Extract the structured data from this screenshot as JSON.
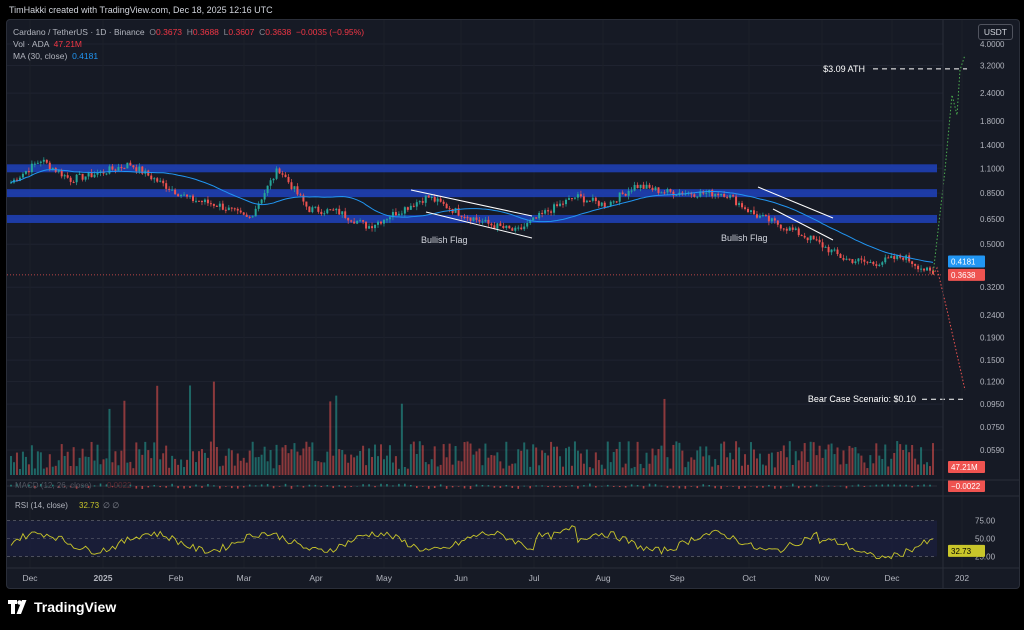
{
  "header": {
    "attribution": "TimHakki created with TradingView.com, Dec 18, 2025 12:16 UTC"
  },
  "legend": {
    "symbol": "Cardano / TetherUS · 1D · Binance",
    "open_label": "O",
    "open": "0.3673",
    "high_label": "H",
    "high": "0.3688",
    "low_label": "L",
    "low": "0.3607",
    "close_label": "C",
    "close": "0.3638",
    "change": "−0.0035 (−0.95%)",
    "vol_label": "Vol · ADA",
    "vol": "47.21M",
    "ma_label": "MA (30, close)",
    "ma": "0.4181"
  },
  "currency": "USDT",
  "footer": {
    "brand": "TradingView"
  },
  "colors": {
    "bg": "#161a25",
    "zone": "#1e3fb4",
    "up": "#26a69a",
    "down": "#ef5350",
    "ma": "#2196f3",
    "rsi": "#c9c62a"
  },
  "chart_data": {
    "type": "candlestick",
    "scale": "log",
    "x_ticks": [
      "Dec",
      "2025",
      "Feb",
      "Mar",
      "Apr",
      "May",
      "Jun",
      "Jul",
      "Aug",
      "Sep",
      "Oct",
      "Nov",
      "Dec",
      "202"
    ],
    "y_ticks": [
      "4.0000",
      "3.2000",
      "2.4000",
      "1.8000",
      "1.4000",
      "1.1000",
      "0.8500",
      "0.6500",
      "0.5000",
      "0.4181",
      "0.3638",
      "0.3200",
      "0.2400",
      "0.1900",
      "0.1500",
      "0.1200",
      "0.0950",
      "0.0750",
      "0.0590"
    ],
    "price_path": [
      {
        "t": "Dec",
        "p": 0.95
      },
      {
        "t": "Dec-mid",
        "p": 1.2
      },
      {
        "t": "Dec-end",
        "p": 0.98
      },
      {
        "t": "2025",
        "p": 1.05
      },
      {
        "t": "Jan-mid",
        "p": 1.15
      },
      {
        "t": "Jan-end",
        "p": 0.95
      },
      {
        "t": "Feb",
        "p": 0.8
      },
      {
        "t": "Feb-mid",
        "p": 0.75
      },
      {
        "t": "Feb-end",
        "p": 0.65
      },
      {
        "t": "Mar",
        "p": 1.1
      },
      {
        "t": "Mar-mid",
        "p": 0.72
      },
      {
        "t": "Apr",
        "p": 0.7
      },
      {
        "t": "Apr-mid",
        "p": 0.6
      },
      {
        "t": "May",
        "p": 0.7
      },
      {
        "t": "May-mid",
        "p": 0.82
      },
      {
        "t": "Jun",
        "p": 0.7
      },
      {
        "t": "Jun-mid",
        "p": 0.62
      },
      {
        "t": "Jul",
        "p": 0.57
      },
      {
        "t": "Jul-mid",
        "p": 0.7
      },
      {
        "t": "Aug",
        "p": 0.82
      },
      {
        "t": "Aug-mid",
        "p": 0.75
      },
      {
        "t": "Aug-end",
        "p": 0.92
      },
      {
        "t": "Sep",
        "p": 0.86
      },
      {
        "t": "Sep-mid",
        "p": 0.85
      },
      {
        "t": "Oct",
        "p": 0.85
      },
      {
        "t": "Oct-mid",
        "p": 0.68
      },
      {
        "t": "Oct-end",
        "p": 0.6
      },
      {
        "t": "Nov",
        "p": 0.52
      },
      {
        "t": "Nov-mid",
        "p": 0.43
      },
      {
        "t": "Dec",
        "p": 0.41
      },
      {
        "t": "Dec-mid",
        "p": 0.44
      },
      {
        "t": "Dec-18",
        "p": 0.3638
      }
    ],
    "resistance_zones": [
      1.1,
      0.85,
      0.65
    ],
    "annotations": [
      {
        "text": "Bullish Flag"
      },
      {
        "text": "Bullish Flag"
      },
      {
        "text": "$3.09 ATH",
        "value": 3.09
      },
      {
        "text": "Bear Case Scenario: $0.10",
        "value": 0.1
      }
    ],
    "price_labels": {
      "ma": "0.4181",
      "last": "0.3638",
      "volume": "47.21M",
      "macd": "−0.0022",
      "rsi": "32.73"
    },
    "indicators": {
      "macd": {
        "label": "MACD (12, 26, close)",
        "value": "−0.0022",
        "faded_value": "0.0022"
      },
      "rsi": {
        "label": "RSI (14, close)",
        "value": "32.73",
        "extra": "∅ ∅",
        "levels": [
          "75.00",
          "50.00",
          "25.00"
        ]
      }
    }
  }
}
